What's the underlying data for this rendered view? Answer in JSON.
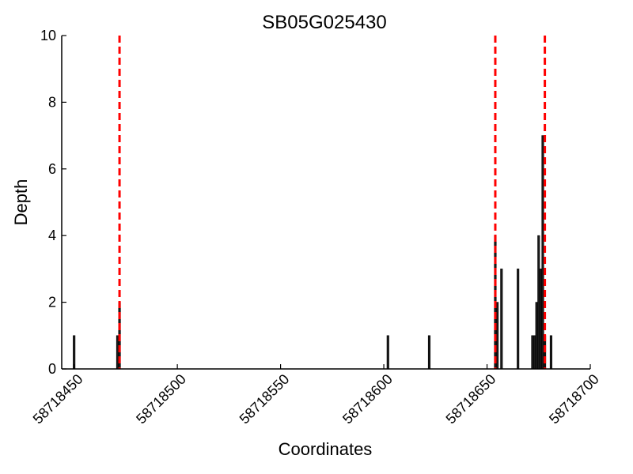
{
  "chart_data": {
    "type": "bar",
    "title": "SB05G025430",
    "xlabel": "Coordinates",
    "ylabel": "Depth",
    "xlim": [
      58718444,
      58718700
    ],
    "ylim": [
      0,
      10
    ],
    "x_ticks": [
      58718450,
      58718500,
      58718550,
      58718600,
      58718650,
      58718700
    ],
    "y_ticks": [
      0,
      2,
      4,
      6,
      8,
      10
    ],
    "grid": false,
    "legend": "none",
    "bar_color": "#1a1a1a",
    "marker_color": "#ff0000",
    "series": [
      {
        "x": [
          58718450,
          58718471,
          58718472,
          58718602,
          58718622,
          58718654,
          58718655,
          58718657,
          58718665,
          58718672,
          58718673,
          58718674,
          58718675,
          58718676,
          58718677,
          58718678,
          58718681
        ],
        "values": [
          1,
          1,
          2,
          1,
          1,
          4,
          2,
          3,
          3,
          1,
          1,
          2,
          4,
          3,
          7,
          1,
          1
        ]
      }
    ],
    "vlines": [
      58718472,
      58718654,
      58718678
    ]
  }
}
